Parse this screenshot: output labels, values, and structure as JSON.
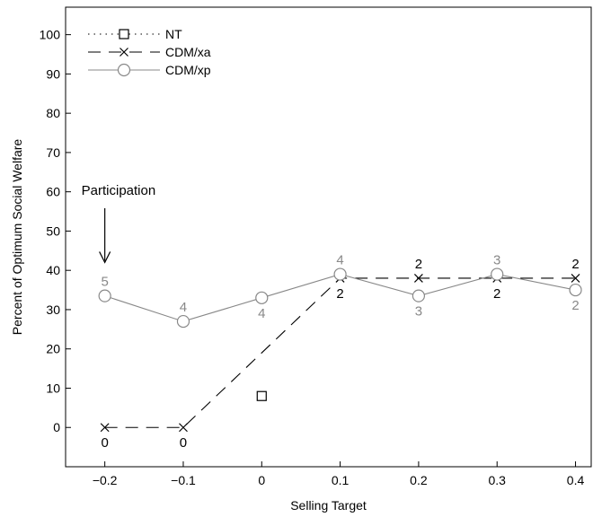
{
  "chart_data": {
    "type": "line",
    "xlabel": "Selling Target",
    "ylabel": "Percent of Optimum Social Welfare",
    "xlim": [
      -0.25,
      0.42
    ],
    "ylim": [
      -10,
      107
    ],
    "xticks": [
      -0.2,
      -0.1,
      0,
      0.1,
      0.2,
      0.3,
      0.4
    ],
    "xtick_labels": [
      "−0.2",
      "−0.1",
      "0",
      "0.1",
      "0.2",
      "0.3",
      "0.4"
    ],
    "yticks": [
      0,
      10,
      20,
      30,
      40,
      50,
      60,
      70,
      80,
      90,
      100
    ],
    "ytick_labels": [
      "0",
      "10",
      "20",
      "30",
      "40",
      "50",
      "60",
      "70",
      "80",
      "90",
      "100"
    ],
    "grid": false,
    "legend_position": "top-left",
    "series": [
      {
        "name": "NT",
        "marker": "square",
        "line": "dotted",
        "color": "#000000",
        "points": [
          {
            "x": 0,
            "y": 8
          }
        ]
      },
      {
        "name": "CDM/xa",
        "marker": "x",
        "line": "dashed",
        "color": "#000000",
        "label_color": "#000000",
        "points": [
          {
            "x": -0.2,
            "y": 0,
            "label": "0",
            "label_pos": "below"
          },
          {
            "x": -0.1,
            "y": 0,
            "label": "0",
            "label_pos": "below"
          },
          {
            "x": 0.1,
            "y": 38,
            "label": "2",
            "label_pos": "below"
          },
          {
            "x": 0.2,
            "y": 38,
            "label": "2",
            "label_pos": "above"
          },
          {
            "x": 0.3,
            "y": 38,
            "label": "2",
            "label_pos": "below"
          },
          {
            "x": 0.4,
            "y": 38,
            "label": "2",
            "label_pos": "above"
          }
        ]
      },
      {
        "name": "CDM/xp",
        "marker": "circle",
        "line": "solid",
        "color": "#888888",
        "label_color": "#888888",
        "points": [
          {
            "x": -0.2,
            "y": 33.5,
            "label": "5",
            "label_pos": "above"
          },
          {
            "x": -0.1,
            "y": 27,
            "label": "4",
            "label_pos": "above"
          },
          {
            "x": 0,
            "y": 33,
            "label": "4",
            "label_pos": "below"
          },
          {
            "x": 0.1,
            "y": 39,
            "label": "4",
            "label_pos": "above"
          },
          {
            "x": 0.2,
            "y": 33.5,
            "label": "3",
            "label_pos": "below"
          },
          {
            "x": 0.3,
            "y": 39,
            "label": "3",
            "label_pos": "above"
          },
          {
            "x": 0.4,
            "y": 35,
            "label": "2",
            "label_pos": "below"
          }
        ]
      }
    ],
    "annotations": [
      {
        "text": "Participation",
        "arrow_x": -0.2,
        "arrow_to_y": 42
      }
    ]
  }
}
